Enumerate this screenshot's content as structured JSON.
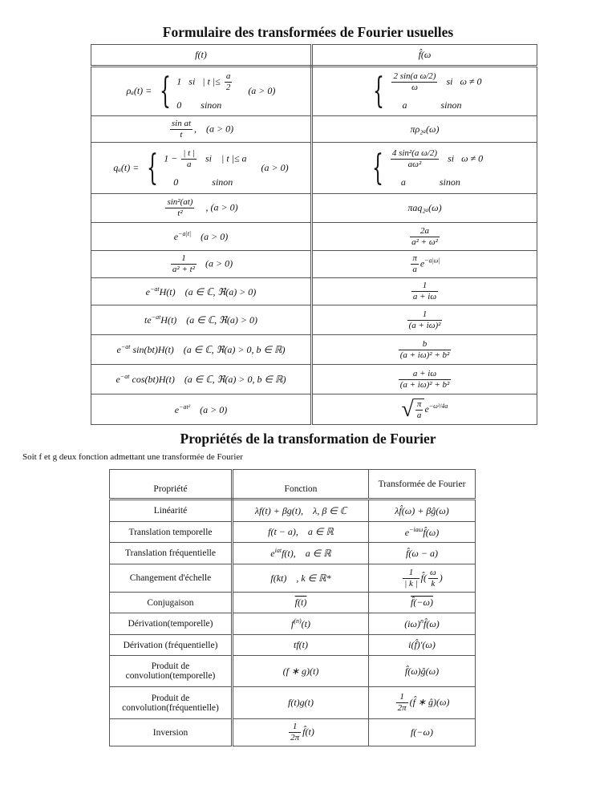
{
  "title1": "Formulaire des transformées de Fourier usuelles",
  "table1": {
    "headers": [
      "f(t)",
      "f̂(ω"
    ],
    "rows": [
      {
        "left": [
          {
            "t": "ρₐ(t) = "
          },
          {
            "cases": [
              [
                {
                  "t": "1   si   | t |≤ "
                },
                {
                  "n": "a",
                  "d": "2"
                }
              ],
              [
                {
                  "t": "0        sinon"
                }
              ]
            ]
          },
          {
            "t": "      (a > 0)"
          }
        ],
        "right": [
          {
            "cases": [
              [
                {
                  "n": "2 sin(a ω/2)",
                  "d": "ω"
                },
                {
                  "t": "   si   ω ≠ 0"
                }
              ],
              [
                {
                  "t": "     a              sinon"
                }
              ]
            ]
          }
        ]
      },
      {
        "left": [
          {
            "n": "sin at",
            "d": "t"
          },
          {
            "t": ",    (a > 0)"
          }
        ],
        "right": [
          {
            "t": "πρ₂ₐ(ω)"
          }
        ]
      },
      {
        "left": [
          {
            "t": "qₐ(t) = "
          },
          {
            "cases": [
              [
                {
                  "t": "1 − "
                },
                {
                  "n": "| t |",
                  "d": "a"
                },
                {
                  "t": "   si    | t |≤ a"
                }
              ],
              [
                {
                  "t": "    0              sinon"
                }
              ]
            ]
          },
          {
            "t": "      (a > 0)"
          }
        ],
        "right": [
          {
            "cases": [
              [
                {
                  "n": "4 sin²(a ω/2)",
                  "d": "aω²"
                },
                {
                  "t": "   si   ω ≠ 0"
                }
              ],
              [
                {
                  "t": "     a              sinon"
                }
              ]
            ]
          }
        ]
      },
      {
        "left": [
          {
            "n": "sin²(at)",
            "d": "t²"
          },
          {
            "t": "    , (a > 0)"
          }
        ],
        "right": [
          {
            "t": "πaq₂ₐ(ω)"
          }
        ]
      },
      {
        "left": [
          {
            "t": "e"
          },
          {
            "sup": "−a|t|"
          },
          {
            "t": "    (a > 0)"
          }
        ],
        "right": [
          {
            "n": "2a",
            "d": "a² + ω²"
          }
        ]
      },
      {
        "left": [
          {
            "n": "1",
            "d": "a² + t²"
          },
          {
            "t": "   (a > 0)"
          }
        ],
        "right": [
          {
            "n": "π",
            "d": "a"
          },
          {
            "t": "e"
          },
          {
            "sup": "−a|ω|"
          }
        ]
      },
      {
        "left": [
          {
            "t": "e"
          },
          {
            "sup": "−at"
          },
          {
            "t": "H(t)    (a ∈ ℂ, ℜ(a) > 0)"
          }
        ],
        "right": [
          {
            "n": "1",
            "d": "a + iω"
          }
        ]
      },
      {
        "left": [
          {
            "t": "te"
          },
          {
            "sup": "−at"
          },
          {
            "t": "H(t)    (a ∈ ℂ, ℜ(a) > 0)"
          }
        ],
        "right": [
          {
            "n": "1",
            "d": "(a + iω)²"
          }
        ]
      },
      {
        "left": [
          {
            "t": "e"
          },
          {
            "sup": "−at"
          },
          {
            "t": " sin(bt)H(t)    (a ∈ ℂ, ℜ(a) > 0, b ∈ ℝ)"
          }
        ],
        "right": [
          {
            "n": "b",
            "d": "(a + iω)² + b²"
          }
        ]
      },
      {
        "left": [
          {
            "t": "e"
          },
          {
            "sup": "−at"
          },
          {
            "t": " cos(bt)H(t)    (a ∈ ℂ, ℜ(a) > 0, b ∈ ℝ)"
          }
        ],
        "right": [
          {
            "n": "a + iω",
            "d": "(a + iω)² + b²"
          }
        ]
      },
      {
        "left": [
          {
            "t": "e"
          },
          {
            "sup": "−at²"
          },
          {
            "t": "    (a > 0)"
          }
        ],
        "right": [
          {
            "sqrt": [
              {
                "n": "π",
                "d": "a"
              }
            ]
          },
          {
            "t": "e"
          },
          {
            "sup": "−ω²/4a"
          }
        ]
      }
    ]
  },
  "title2": "Propriétés de la transformation de Fourier",
  "intro": "Soit f et g deux fonction admettant une transformée de Fourier",
  "table2": {
    "headers": [
      "Propriété",
      "Fonction",
      "Transformée de Fourier"
    ],
    "rows": [
      {
        "p": "Linéarité",
        "f": [
          {
            "t": "λf(t) + βg(t),    λ, β ∈ ℂ"
          }
        ],
        "tf": [
          {
            "t": "λf̂(ω) + βĝ(ω)"
          }
        ]
      },
      {
        "p": "Translation temporelle",
        "f": [
          {
            "t": "f(t − a),    a ∈ ℝ"
          }
        ],
        "tf": [
          {
            "t": "e"
          },
          {
            "sup": "−iaω"
          },
          {
            "t": "f̂(ω)"
          }
        ]
      },
      {
        "p": "Translation fréquentielle",
        "f": [
          {
            "t": "e"
          },
          {
            "sup": "iat"
          },
          {
            "t": "f(t),    a ∈ ℝ"
          }
        ],
        "tf": [
          {
            "t": "f̂(ω − a)"
          }
        ]
      },
      {
        "p": "Changement d'échelle",
        "f": [
          {
            "t": "f(kt)    , k ∈ ℝ*"
          }
        ],
        "tf": [
          {
            "n": "1",
            "d": "| k |"
          },
          {
            "t": "f̂("
          },
          {
            "n": "ω",
            "d": "k"
          },
          {
            "t": ")"
          }
        ]
      },
      {
        "p": "Conjugaison",
        "f": [
          {
            "over": "f(t)"
          }
        ],
        "tf": [
          {
            "over": "f̂(−ω)"
          }
        ]
      },
      {
        "p": "Dérivation(temporelle)",
        "f": [
          {
            "t": "f"
          },
          {
            "sup": "(n)"
          },
          {
            "t": "(t)"
          }
        ],
        "tf": [
          {
            "t": "(iω)"
          },
          {
            "sup": "n"
          },
          {
            "t": "f̂(ω)"
          }
        ]
      },
      {
        "p": "Dérivation (fréquentielle)",
        "f": [
          {
            "t": "tf(t)"
          }
        ],
        "tf": [
          {
            "t": "i(f̂)′(ω)"
          }
        ]
      },
      {
        "p": "Produit de convolution(temporelle)",
        "f": [
          {
            "t": "(f ∗ g)(t)"
          }
        ],
        "tf": [
          {
            "t": "f̂(ω)ĝ(ω)"
          }
        ]
      },
      {
        "p": "Produit de convolution(fréquentielle)",
        "f": [
          {
            "t": "f(t)g(t)"
          }
        ],
        "tf": [
          {
            "n": "1",
            "d": "2π"
          },
          {
            "t": "(f̂ ∗ ĝ)(ω)"
          }
        ]
      },
      {
        "p": "Inversion",
        "f": [
          {
            "n": "1",
            "d": "2π"
          },
          {
            "t": "f̂(t)"
          }
        ],
        "tf": [
          {
            "t": "f(−ω)"
          }
        ]
      }
    ]
  }
}
